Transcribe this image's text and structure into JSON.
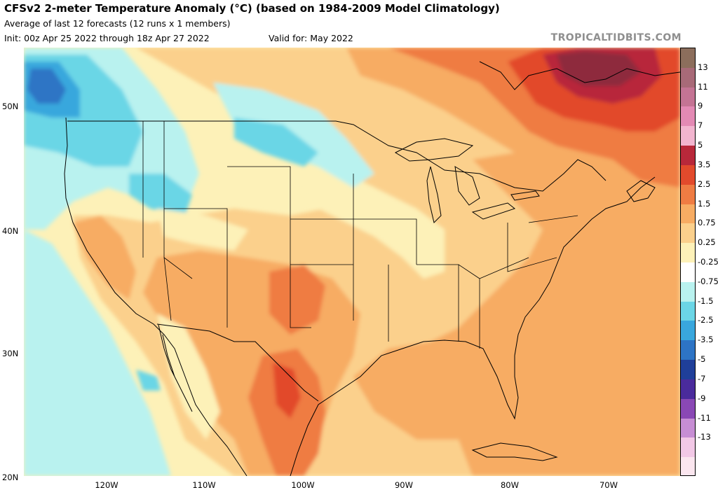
{
  "header": {
    "title": "CFSv2 2-meter Temperature Anomaly (°C) (based on 1984-2009 Model Climatology)",
    "subtitle": "Average of last 12 forecasts (12 runs x 1 members)",
    "init": "Init: 00z Apr 25 2022 through 18z Apr 27 2022",
    "valid": "Valid for: May 2022",
    "credit": "TROPICALTIDBITS.COM"
  },
  "map": {
    "lat_labels": [
      "50N",
      "40N",
      "30N",
      "20N"
    ],
    "lon_labels": [
      "120W",
      "110W",
      "100W",
      "90W",
      "80W",
      "70W"
    ]
  },
  "colorbar": {
    "labels": [
      "13",
      "11",
      "9",
      "7",
      "5",
      "3.5",
      "2.5",
      "1.5",
      "0.75",
      "0.25",
      "-0.25",
      "-0.75",
      "-1.5",
      "-2.5",
      "-3.5",
      "-5",
      "-7",
      "-9",
      "-11",
      "-13"
    ],
    "colors": [
      "#8c6e5c",
      "#a86a78",
      "#c47494",
      "#e38ab4",
      "#f2b5cf",
      "#b8283a",
      "#e24a2c",
      "#ef7c43",
      "#f7ac63",
      "#fbd08c",
      "#fdf1b8",
      "#ffffff",
      "#b9f2ef",
      "#6bd6e6",
      "#39a7dd",
      "#2d74c5",
      "#1f3f99",
      "#4a2b9c",
      "#8a48b5",
      "#c78ed4",
      "#f2c8e6",
      "#fbe6ef"
    ]
  },
  "palette": {
    "background": "#ffffff",
    "neutral": "#fdf1b8",
    "warm_light": "#fbd08c",
    "warm_mid": "#f7ac63",
    "warm_strong": "#ef7c43",
    "hot": "#e24a2c",
    "very_hot": "#b8283a",
    "extreme_hot": "#8e2a3c",
    "cool_light": "#b9f2ef",
    "cool_mid": "#6bd6e6",
    "cool_strong": "#39a7dd",
    "cold": "#2d74c5"
  }
}
